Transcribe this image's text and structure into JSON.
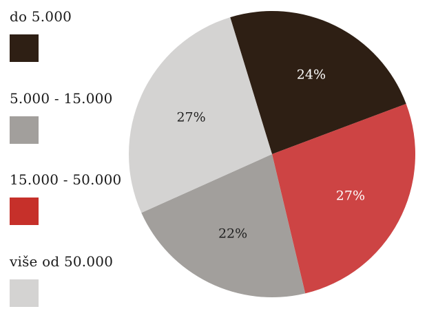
{
  "chart_data": {
    "type": "pie",
    "title": "",
    "slices": [
      {
        "label": "do 5.000",
        "value": 24,
        "display": "24%",
        "color": "#2e1f14",
        "text_color": "#ffffff"
      },
      {
        "label": "15.000 - 50.000",
        "value": 27,
        "display": "27%",
        "color": "#cd4444",
        "text_color": "#ffffff"
      },
      {
        "label": "5.000 - 15.000",
        "value": 22,
        "display": "22%",
        "color": "#a29f9c",
        "text_color": "#222222"
      },
      {
        "label": "više od 50.000",
        "value": 27,
        "display": "27%",
        "color": "#d4d3d2",
        "text_color": "#222222"
      }
    ],
    "legend": [
      {
        "label": "do 5.000",
        "color": "#2e1f14"
      },
      {
        "label": "5.000 - 15.000",
        "color": "#a29f9c"
      },
      {
        "label": "15.000 - 50.000",
        "color": "#c6302a"
      },
      {
        "label": "više od 50.000",
        "color": "#d4d3d2"
      }
    ],
    "legend_placement": "left",
    "start_angle_deg": -17,
    "direction": "clockwise"
  }
}
